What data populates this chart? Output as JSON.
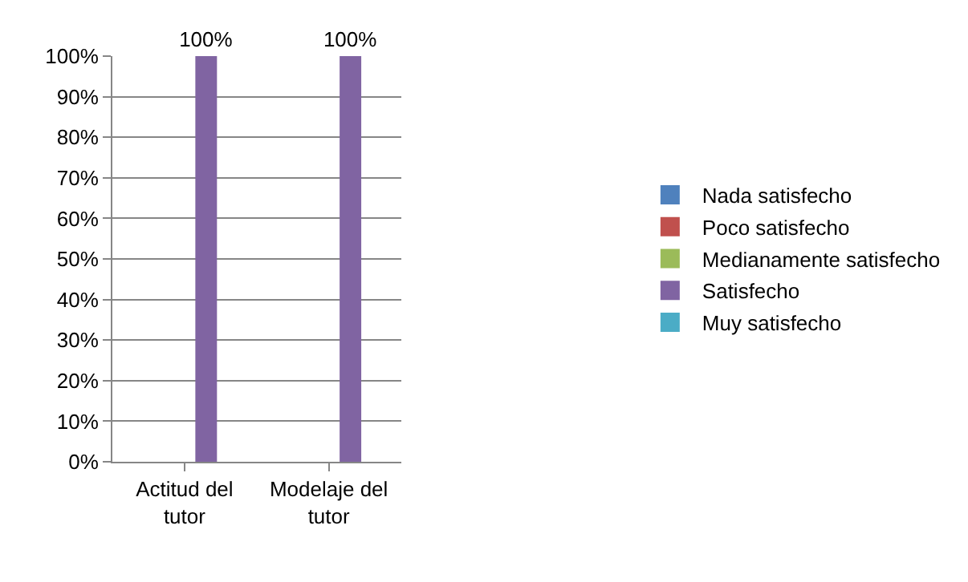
{
  "chart_data": {
    "type": "bar",
    "categories": [
      "Actitud del tutor",
      "Modelaje del tutor"
    ],
    "series": [
      {
        "name": "Nada satisfecho",
        "color": "#4f81bd",
        "values": [
          0,
          0
        ],
        "value_labels": [
          null,
          null
        ]
      },
      {
        "name": "Poco satisfecho",
        "color": "#c0504d",
        "values": [
          0,
          0
        ],
        "value_labels": [
          null,
          null
        ]
      },
      {
        "name": "Medianamente satisfecho",
        "color": "#9bbb59",
        "values": [
          0,
          0
        ],
        "value_labels": [
          null,
          null
        ]
      },
      {
        "name": "Satisfecho",
        "color": "#8064a2",
        "values": [
          100,
          100
        ],
        "value_labels": [
          "100%",
          "100%"
        ]
      },
      {
        "name": "Muy satisfecho",
        "color": "#4bacc6",
        "values": [
          0,
          0
        ],
        "value_labels": [
          null,
          null
        ]
      }
    ],
    "ylim": [
      0,
      100
    ],
    "yticks": [
      {
        "value": 0,
        "label": "0%"
      },
      {
        "value": 10,
        "label": "10%"
      },
      {
        "value": 20,
        "label": "20%"
      },
      {
        "value": 30,
        "label": "30%"
      },
      {
        "value": 40,
        "label": "40%"
      },
      {
        "value": 50,
        "label": "50%"
      },
      {
        "value": 60,
        "label": "60%"
      },
      {
        "value": 70,
        "label": "70%"
      },
      {
        "value": 80,
        "label": "80%"
      },
      {
        "value": 90,
        "label": "90%"
      },
      {
        "value": 100,
        "label": "100%"
      }
    ],
    "grid": "y",
    "legend": "right"
  }
}
